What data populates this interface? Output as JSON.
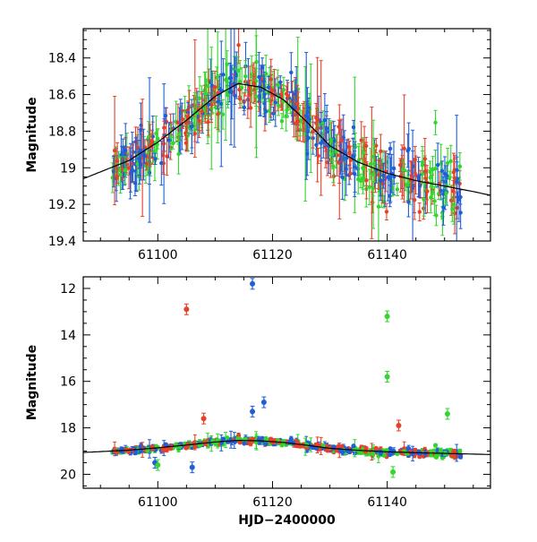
{
  "chart_data": [
    {
      "type": "scatter",
      "panel": "top",
      "title": "",
      "xlabel": "",
      "ylabel": "Magnitude",
      "xlim": [
        61087,
        61158
      ],
      "ylim": [
        19.4,
        18.24
      ],
      "y_inverted": true,
      "x_ticks": [
        61100,
        61120,
        61140
      ],
      "x_minor_step": 5,
      "y_ticks": [
        18.4,
        18.6,
        18.8,
        19,
        19.2,
        19.4
      ],
      "y_tick_labels": [
        "18.4",
        "18.6",
        "18.8",
        "19",
        "19.2",
        "19.4"
      ],
      "y_minor_step": 0.05,
      "model_curve": {
        "x": [
          61087,
          61095,
          61100,
          61105,
          61110,
          61114,
          61118,
          61122,
          61126,
          61130,
          61135,
          61140,
          61145,
          61150,
          61155,
          61158
        ],
        "y": [
          19.06,
          18.96,
          18.86,
          18.74,
          18.61,
          18.54,
          18.56,
          18.63,
          18.75,
          18.88,
          18.97,
          19.03,
          19.07,
          19.1,
          19.13,
          19.15
        ]
      },
      "series": [
        {
          "name": "red",
          "color": "#e8412a"
        },
        {
          "name": "blue",
          "color": "#1f5fd6"
        },
        {
          "name": "green",
          "color": "#33d62f"
        }
      ]
    },
    {
      "type": "scatter",
      "panel": "bottom",
      "title": "",
      "xlabel": "HJD−2400000",
      "ylabel": "Magnitude",
      "xlim": [
        61087,
        61158
      ],
      "ylim": [
        20.6,
        11.5
      ],
      "y_inverted": true,
      "x_ticks": [
        61100,
        61120,
        61140
      ],
      "x_minor_step": 5,
      "y_ticks": [
        12,
        14,
        16,
        18,
        20
      ],
      "y_tick_labels": [
        "12",
        "14",
        "16",
        "18",
        "20"
      ],
      "y_minor_step": 0.5,
      "model_curve": {
        "x": [
          61087,
          61095,
          61100,
          61105,
          61110,
          61114,
          61118,
          61122,
          61126,
          61130,
          61135,
          61140,
          61145,
          61150,
          61155,
          61158
        ],
        "y": [
          19.06,
          18.96,
          18.86,
          18.74,
          18.61,
          18.54,
          18.56,
          18.63,
          18.75,
          18.88,
          18.97,
          19.03,
          19.07,
          19.1,
          19.13,
          19.15
        ]
      },
      "outliers": [
        {
          "series": "red",
          "x": 61105,
          "y": 12.9
        },
        {
          "series": "blue",
          "x": 61116.5,
          "y": 11.8
        },
        {
          "series": "green",
          "x": 61140,
          "y": 13.2
        },
        {
          "series": "green",
          "x": 61140,
          "y": 15.8
        },
        {
          "series": "blue",
          "x": 61116.5,
          "y": 17.3
        },
        {
          "series": "blue",
          "x": 61118.5,
          "y": 16.9
        },
        {
          "series": "green",
          "x": 61150.5,
          "y": 17.4
        },
        {
          "series": "red",
          "x": 61108,
          "y": 17.6
        },
        {
          "series": "red",
          "x": 61142,
          "y": 17.9
        },
        {
          "series": "blue",
          "x": 61106,
          "y": 19.7
        },
        {
          "series": "green",
          "x": 61141,
          "y": 19.9
        },
        {
          "series": "blue",
          "x": 61099.5,
          "y": 19.5
        },
        {
          "series": "green",
          "x": 61100,
          "y": 19.6
        }
      ],
      "series": [
        {
          "name": "red",
          "color": "#e8412a"
        },
        {
          "name": "blue",
          "color": "#1f5fd6"
        },
        {
          "name": "green",
          "color": "#33d62f"
        }
      ]
    }
  ],
  "observations": {
    "x_start": 61092,
    "x_end": 61153,
    "count_per_series": 180
  }
}
